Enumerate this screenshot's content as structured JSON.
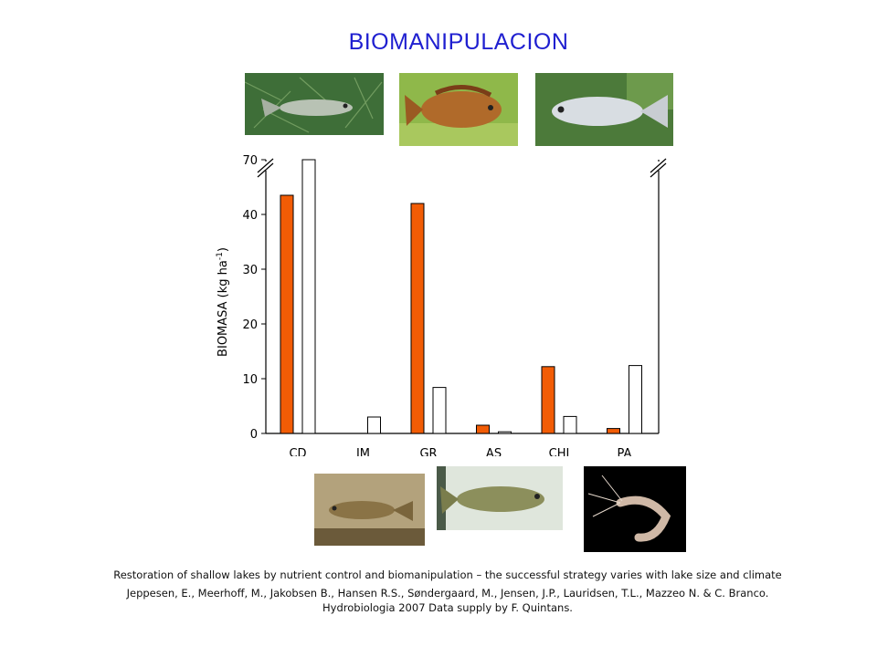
{
  "title": "BIOMANIPULACION",
  "photos_top": [
    {
      "name": "guppy-photo-icon",
      "colors": {
        "bg": "#3e6e38",
        "fish": "#b8c2b4"
      }
    },
    {
      "name": "cichlid-photo-icon",
      "colors": {
        "bg": "#8fb84a",
        "fish": "#b06a2a"
      }
    },
    {
      "name": "silver-fish-photo-icon",
      "colors": {
        "bg": "#4c7a3a",
        "fish": "#d8dde2"
      }
    }
  ],
  "photos_bottom": [
    {
      "name": "livebearer-photo-icon",
      "colors": {
        "bg": "#b3a27c",
        "fish": "#8a7346"
      }
    },
    {
      "name": "tetra-photo-icon",
      "colors": {
        "bg": "#dfe6dc",
        "fish": "#8c8f5c"
      }
    },
    {
      "name": "shrimp-photo-icon",
      "colors": {
        "bg": "#000000",
        "fish": "#cfb8a6"
      }
    }
  ],
  "chart_data": {
    "type": "bar",
    "title": "",
    "xlabel": "",
    "ylabel": "BIOMASA (kg ha",
    "ylabel_superscript": "-1",
    "ylabel_suffix": ")",
    "categories": [
      "CD",
      "JM",
      "GR",
      "AS",
      "CHI",
      "PA"
    ],
    "series": [
      {
        "color": "#f25c05",
        "values": [
          43.5,
          0,
          42,
          1.5,
          12.2,
          0.9
        ]
      },
      {
        "color": "#ffffff",
        "values": [
          70,
          3,
          8.4,
          0.3,
          3.1,
          12.4
        ]
      }
    ],
    "yticks": [
      0,
      10,
      20,
      30,
      40,
      70
    ],
    "ylim": [
      0,
      70
    ],
    "axis_break": {
      "from": 45,
      "to": 70
    },
    "grid": false,
    "legend": "none"
  },
  "caption": {
    "line1": "Restoration of shallow lakes by nutrient control and biomanipulation  – the successful strategy varies with lake size and climate",
    "line2": "Jeppesen, E., Meerhoff, M., Jakobsen B., Hansen R.S., Søndergaard, M., Jensen, J.P., Lauridsen, T.L.,  Mazzeo N. & C. Branco.",
    "line3": "Hydrobiologia  2007   Data supply  by F. Quintans."
  }
}
